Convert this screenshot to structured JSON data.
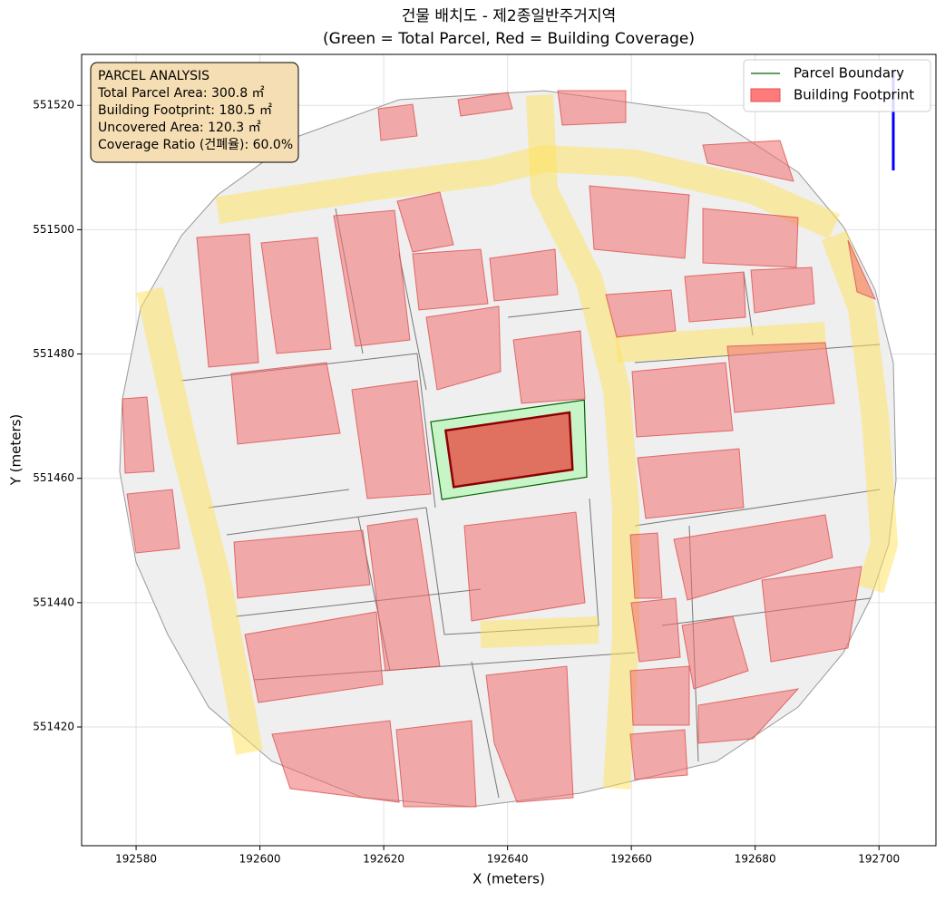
{
  "chart_data": {
    "type": "map",
    "title": "건물 배치도 - 제2종일반주거지역",
    "subtitle": "(Green = Total Parcel, Red = Building Coverage)",
    "xlabel": "X (meters)",
    "ylabel": "Y (meters)",
    "xlim": [
      192571.2,
      192709.2
    ],
    "ylim": [
      551400.9,
      551528.2
    ],
    "xticks": [
      192580,
      192600,
      192620,
      192640,
      192660,
      192680,
      192700
    ],
    "yticks": [
      551420,
      551440,
      551460,
      551480,
      551500,
      551520
    ],
    "grid": true,
    "legend": "upper right",
    "annotation": [
      "PARCEL ANALYSIS",
      "Total Parcel Area: 300.8 ㎡",
      "Building Footprint: 180.5 ㎡",
      "Uncovered Area: 120.3 ㎡",
      "Coverage Ratio (건폐율): 60.0%"
    ],
    "series": [
      {
        "name": "Parcel Boundary",
        "color": "#006400",
        "fill": "#c8f5c8",
        "x": [
          192627.6,
          192652.4,
          192652.8,
          192629.4
        ],
        "y": [
          551469.1,
          551472.6,
          551460.2,
          551456.6
        ]
      },
      {
        "name": "Building Footprint",
        "color": "#8b0000",
        "fill": "#e07060",
        "x": [
          192630.0,
          192650.0,
          192650.5,
          192631.3
        ],
        "y": [
          551467.7,
          551470.6,
          551461.4,
          551458.6
        ]
      }
    ]
  }
}
